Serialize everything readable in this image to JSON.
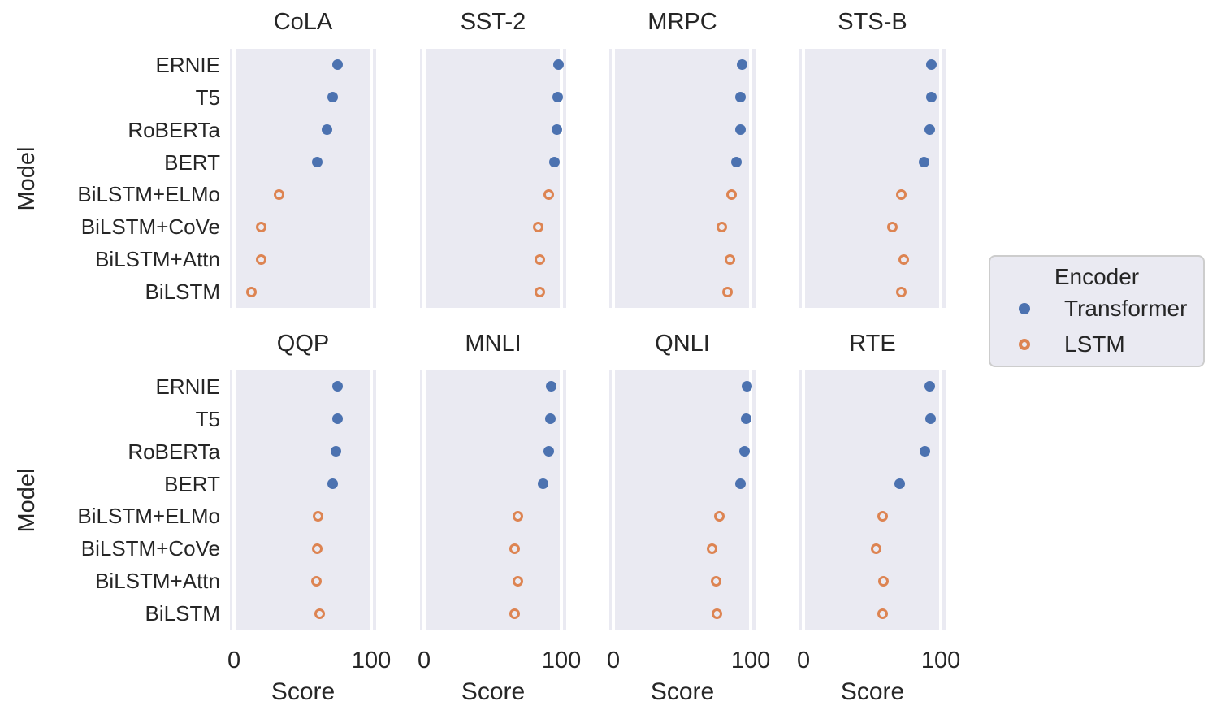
{
  "chart_data": {
    "type": "scatter",
    "subtype": "faceted-dot-plot",
    "facet_titles": [
      "CoLA",
      "SST-2",
      "MRPC",
      "STS-B",
      "QQP",
      "MNLI",
      "QNLI",
      "RTE"
    ],
    "facet_grid": {
      "rows": 2,
      "cols": 4
    },
    "categories": [
      "ERNIE",
      "T5",
      "RoBERTa",
      "BERT",
      "BiLSTM+ELMo",
      "BiLSTM+CoVe",
      "BiLSTM+Attn",
      "BiLSTM"
    ],
    "encoder_by_model": [
      "Transformer",
      "Transformer",
      "Transformer",
      "Transformer",
      "LSTM",
      "LSTM",
      "LSTM",
      "LSTM"
    ],
    "scores": {
      "CoLA": [
        75.5,
        71.6,
        67.8,
        60.5,
        33.0,
        19.5,
        19.5,
        12.5
      ],
      "SST-2": [
        97.8,
        97.5,
        96.7,
        94.9,
        91.0,
        83.0,
        84.0,
        84.0
      ],
      "MRPC": [
        93.9,
        92.8,
        92.3,
        89.3,
        86.0,
        79.0,
        85.0,
        83.0
      ],
      "STS-B": [
        93.0,
        93.1,
        92.2,
        87.6,
        71.0,
        65.0,
        73.0,
        71.0
      ],
      "QQP": [
        75.2,
        75.1,
        74.3,
        72.1,
        61.0,
        60.5,
        60.0,
        62.5
      ],
      "MNLI": [
        92.3,
        92.2,
        90.8,
        86.7,
        68.0,
        66.0,
        68.0,
        66.0
      ],
      "QNLI": [
        97.3,
        96.9,
        95.4,
        92.7,
        77.0,
        72.0,
        75.0,
        75.5
      ],
      "RTE": [
        92.0,
        92.8,
        88.2,
        70.1,
        57.5,
        53.0,
        58.5,
        57.5
      ]
    },
    "xlabel": "Score",
    "ylabel": "Model",
    "xticks": [
      0,
      100
    ],
    "xtick_labels": [
      "0",
      "100"
    ],
    "xlim": [
      -3,
      103.5
    ],
    "grid": "vertical white gridlines at x=0 and x=100 only",
    "legend": {
      "title": "Encoder",
      "position": "right",
      "entries": [
        {
          "label": "Transformer",
          "marker": "filled-circle",
          "color": "#4C72B0"
        },
        {
          "label": "LSTM",
          "marker": "open-circle",
          "color": "#DD8452"
        }
      ]
    },
    "colors": {
      "transformer": "#4C72B0",
      "lstm": "#DD8452",
      "panel_background": "#EAEAF2",
      "gridline": "#FFFFFF",
      "text": "#262626"
    }
  }
}
